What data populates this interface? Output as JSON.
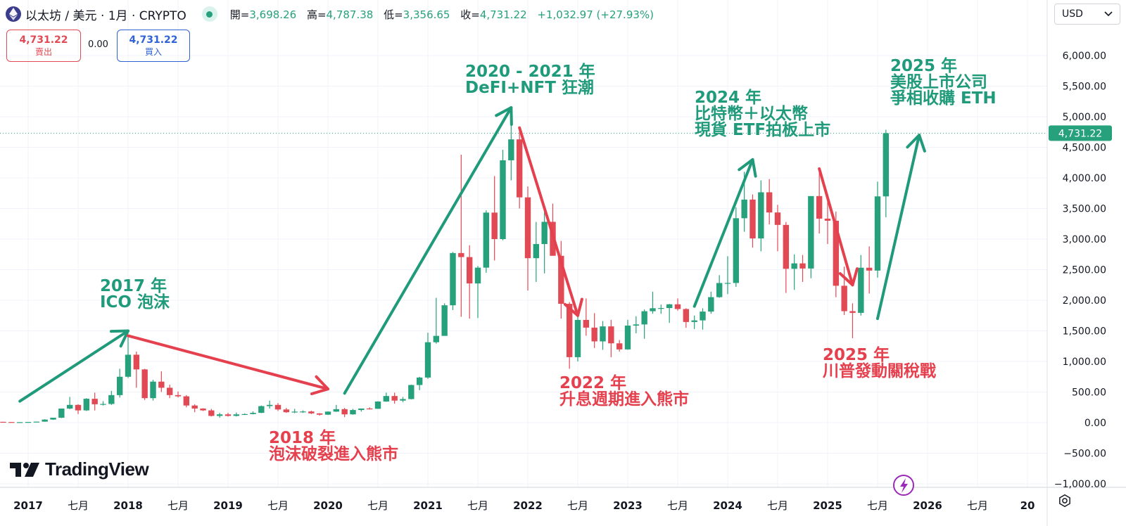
{
  "header": {
    "symbol": "以太坊 / 美元 · 1月 · CRYPTO",
    "open_label": "開=",
    "open": "3,698.26",
    "high_label": "高=",
    "high": "4,787.38",
    "low_label": "低=",
    "low": "3,356.65",
    "close_label": "收=",
    "close": "4,731.22",
    "change": "+1,032.97 (+27.93%)"
  },
  "trade": {
    "sell_price": "4,731.22",
    "sell_label": "賣出",
    "spread": "0.00",
    "buy_price": "4,731.22",
    "buy_label": "買入"
  },
  "currency": {
    "label": "USD",
    "icon": "chevron-down-icon"
  },
  "branding": {
    "logo_text": "TradingView"
  },
  "colors": {
    "up": "#26a17c",
    "down": "#e14a55",
    "price_tag": "#26a17c",
    "annotation_green": "#1f9a7a",
    "annotation_red": "#e5404e",
    "bolt": "#9b2ab8"
  },
  "chart_data": {
    "type": "candlestick",
    "interval": "1M",
    "ylim": [
      -1000,
      6500
    ],
    "y_ticks": [
      6000,
      5500,
      5000,
      4500,
      4000,
      3500,
      3000,
      2500,
      2000,
      1500,
      1000,
      500,
      0,
      -500,
      -1000
    ],
    "y_tick_labels": [
      "6,000.00",
      "5,500.00",
      "5,000.00",
      "4,500.00",
      "4,000.00",
      "3,500.00",
      "3,000.00",
      "2,500.00",
      "2,000.00",
      "1,500.00",
      "1,000.00",
      "500.00",
      "0.00",
      "−500.00",
      "−1,000.00"
    ],
    "x_labels": [
      "2017",
      "七月",
      "2018",
      "七月",
      "2019",
      "七月",
      "2020",
      "七月",
      "2021",
      "七月",
      "2022",
      "七月",
      "2023",
      "七月",
      "2024",
      "七月",
      "2025",
      "七月",
      "2026",
      "七月",
      "20"
    ],
    "last_price": 4731.22,
    "last_price_label": "4,731.22",
    "candles": [
      {
        "date": "2016-10",
        "o": 13,
        "h": 14,
        "l": 10,
        "c": 10
      },
      {
        "date": "2016-11",
        "o": 10,
        "h": 11,
        "l": 8,
        "c": 8
      },
      {
        "date": "2016-12",
        "o": 8,
        "h": 9,
        "l": 7,
        "c": 8
      },
      {
        "date": "2017-01",
        "o": 8,
        "h": 11,
        "l": 8,
        "c": 11
      },
      {
        "date": "2017-02",
        "o": 11,
        "h": 17,
        "l": 10,
        "c": 16
      },
      {
        "date": "2017-03",
        "o": 16,
        "h": 55,
        "l": 15,
        "c": 50
      },
      {
        "date": "2017-04",
        "o": 50,
        "h": 80,
        "l": 45,
        "c": 80
      },
      {
        "date": "2017-05",
        "o": 80,
        "h": 230,
        "l": 75,
        "c": 230
      },
      {
        "date": "2017-06",
        "o": 230,
        "h": 420,
        "l": 220,
        "c": 290
      },
      {
        "date": "2017-07",
        "o": 290,
        "h": 300,
        "l": 140,
        "c": 200
      },
      {
        "date": "2017-08",
        "o": 200,
        "h": 400,
        "l": 190,
        "c": 390
      },
      {
        "date": "2017-09",
        "o": 390,
        "h": 490,
        "l": 200,
        "c": 300
      },
      {
        "date": "2017-10",
        "o": 300,
        "h": 350,
        "l": 280,
        "c": 305
      },
      {
        "date": "2017-11",
        "o": 305,
        "h": 520,
        "l": 290,
        "c": 450
      },
      {
        "date": "2017-12",
        "o": 450,
        "h": 880,
        "l": 410,
        "c": 750
      },
      {
        "date": "2018-01",
        "o": 750,
        "h": 1420,
        "l": 730,
        "c": 1110
      },
      {
        "date": "2018-02",
        "o": 1110,
        "h": 1160,
        "l": 570,
        "c": 870
      },
      {
        "date": "2018-03",
        "o": 870,
        "h": 880,
        "l": 370,
        "c": 400
      },
      {
        "date": "2018-04",
        "o": 400,
        "h": 700,
        "l": 360,
        "c": 670
      },
      {
        "date": "2018-05",
        "o": 670,
        "h": 840,
        "l": 500,
        "c": 570
      },
      {
        "date": "2018-06",
        "o": 570,
        "h": 620,
        "l": 400,
        "c": 450
      },
      {
        "date": "2018-07",
        "o": 450,
        "h": 510,
        "l": 410,
        "c": 430
      },
      {
        "date": "2018-08",
        "o": 430,
        "h": 450,
        "l": 250,
        "c": 280
      },
      {
        "date": "2018-09",
        "o": 280,
        "h": 300,
        "l": 170,
        "c": 230
      },
      {
        "date": "2018-10",
        "o": 230,
        "h": 235,
        "l": 190,
        "c": 200
      },
      {
        "date": "2018-11",
        "o": 200,
        "h": 225,
        "l": 100,
        "c": 110
      },
      {
        "date": "2018-12",
        "o": 110,
        "h": 160,
        "l": 80,
        "c": 135
      },
      {
        "date": "2019-01",
        "o": 135,
        "h": 160,
        "l": 100,
        "c": 110
      },
      {
        "date": "2019-02",
        "o": 110,
        "h": 165,
        "l": 100,
        "c": 135
      },
      {
        "date": "2019-03",
        "o": 135,
        "h": 150,
        "l": 125,
        "c": 140
      },
      {
        "date": "2019-04",
        "o": 140,
        "h": 185,
        "l": 135,
        "c": 160
      },
      {
        "date": "2019-05",
        "o": 160,
        "h": 280,
        "l": 155,
        "c": 270
      },
      {
        "date": "2019-06",
        "o": 270,
        "h": 360,
        "l": 230,
        "c": 290
      },
      {
        "date": "2019-07",
        "o": 290,
        "h": 320,
        "l": 190,
        "c": 215
      },
      {
        "date": "2019-08",
        "o": 215,
        "h": 240,
        "l": 160,
        "c": 170
      },
      {
        "date": "2019-09",
        "o": 170,
        "h": 225,
        "l": 155,
        "c": 180
      },
      {
        "date": "2019-10",
        "o": 180,
        "h": 200,
        "l": 160,
        "c": 182
      },
      {
        "date": "2019-11",
        "o": 182,
        "h": 195,
        "l": 140,
        "c": 151
      },
      {
        "date": "2019-12",
        "o": 151,
        "h": 155,
        "l": 115,
        "c": 130
      },
      {
        "date": "2020-01",
        "o": 130,
        "h": 185,
        "l": 125,
        "c": 180
      },
      {
        "date": "2020-02",
        "o": 180,
        "h": 290,
        "l": 175,
        "c": 220
      },
      {
        "date": "2020-03",
        "o": 220,
        "h": 240,
        "l": 90,
        "c": 135
      },
      {
        "date": "2020-04",
        "o": 135,
        "h": 225,
        "l": 130,
        "c": 206
      },
      {
        "date": "2020-05",
        "o": 206,
        "h": 230,
        "l": 180,
        "c": 231
      },
      {
        "date": "2020-06",
        "o": 231,
        "h": 250,
        "l": 215,
        "c": 226
      },
      {
        "date": "2020-07",
        "o": 226,
        "h": 350,
        "l": 225,
        "c": 345
      },
      {
        "date": "2020-08",
        "o": 345,
        "h": 490,
        "l": 340,
        "c": 435
      },
      {
        "date": "2020-09",
        "o": 435,
        "h": 490,
        "l": 310,
        "c": 360
      },
      {
        "date": "2020-10",
        "o": 360,
        "h": 420,
        "l": 335,
        "c": 385
      },
      {
        "date": "2020-11",
        "o": 385,
        "h": 620,
        "l": 380,
        "c": 615
      },
      {
        "date": "2020-12",
        "o": 615,
        "h": 750,
        "l": 530,
        "c": 737
      },
      {
        "date": "2021-01",
        "o": 737,
        "h": 1470,
        "l": 715,
        "c": 1314
      },
      {
        "date": "2021-02",
        "o": 1314,
        "h": 2040,
        "l": 1290,
        "c": 1418
      },
      {
        "date": "2021-03",
        "o": 1418,
        "h": 1950,
        "l": 1420,
        "c": 1918
      },
      {
        "date": "2021-04",
        "o": 1918,
        "h": 2790,
        "l": 1840,
        "c": 2772
      },
      {
        "date": "2021-05",
        "o": 2772,
        "h": 4380,
        "l": 1730,
        "c": 2706
      },
      {
        "date": "2021-06",
        "o": 2706,
        "h": 2900,
        "l": 1700,
        "c": 2275
      },
      {
        "date": "2021-07",
        "o": 2275,
        "h": 2560,
        "l": 1710,
        "c": 2533
      },
      {
        "date": "2021-08",
        "o": 2533,
        "h": 3470,
        "l": 2450,
        "c": 3433
      },
      {
        "date": "2021-09",
        "o": 3433,
        "h": 4030,
        "l": 2650,
        "c": 3000
      },
      {
        "date": "2021-10",
        "o": 3000,
        "h": 4460,
        "l": 2980,
        "c": 4288
      },
      {
        "date": "2021-11",
        "o": 4288,
        "h": 4870,
        "l": 3960,
        "c": 4630
      },
      {
        "date": "2021-12",
        "o": 4630,
        "h": 4780,
        "l": 3500,
        "c": 3682
      },
      {
        "date": "2022-01",
        "o": 3682,
        "h": 3860,
        "l": 2160,
        "c": 2688
      },
      {
        "date": "2022-02",
        "o": 2688,
        "h": 3280,
        "l": 2300,
        "c": 2919
      },
      {
        "date": "2022-03",
        "o": 2919,
        "h": 3480,
        "l": 2440,
        "c": 3282
      },
      {
        "date": "2022-04",
        "o": 3282,
        "h": 3580,
        "l": 2730,
        "c": 2727
      },
      {
        "date": "2022-05",
        "o": 2727,
        "h": 2970,
        "l": 1700,
        "c": 1942
      },
      {
        "date": "2022-06",
        "o": 1942,
        "h": 1970,
        "l": 880,
        "c": 1070
      },
      {
        "date": "2022-07",
        "o": 1070,
        "h": 1790,
        "l": 1000,
        "c": 1679
      },
      {
        "date": "2022-08",
        "o": 1679,
        "h": 2030,
        "l": 1420,
        "c": 1553
      },
      {
        "date": "2022-09",
        "o": 1553,
        "h": 1790,
        "l": 1220,
        "c": 1328
      },
      {
        "date": "2022-10",
        "o": 1328,
        "h": 1660,
        "l": 1190,
        "c": 1573
      },
      {
        "date": "2022-11",
        "o": 1573,
        "h": 1680,
        "l": 1070,
        "c": 1296
      },
      {
        "date": "2022-12",
        "o": 1296,
        "h": 1350,
        "l": 1160,
        "c": 1197
      },
      {
        "date": "2023-01",
        "o": 1197,
        "h": 1680,
        "l": 1190,
        "c": 1586
      },
      {
        "date": "2023-02",
        "o": 1586,
        "h": 1740,
        "l": 1460,
        "c": 1605
      },
      {
        "date": "2023-03",
        "o": 1605,
        "h": 1850,
        "l": 1370,
        "c": 1821
      },
      {
        "date": "2023-04",
        "o": 1821,
        "h": 2140,
        "l": 1780,
        "c": 1870
      },
      {
        "date": "2023-05",
        "o": 1870,
        "h": 1930,
        "l": 1780,
        "c": 1873
      },
      {
        "date": "2023-06",
        "o": 1873,
        "h": 1940,
        "l": 1630,
        "c": 1934
      },
      {
        "date": "2023-07",
        "o": 1934,
        "h": 2030,
        "l": 1830,
        "c": 1857
      },
      {
        "date": "2023-08",
        "o": 1857,
        "h": 1870,
        "l": 1550,
        "c": 1645
      },
      {
        "date": "2023-09",
        "o": 1645,
        "h": 1750,
        "l": 1530,
        "c": 1671
      },
      {
        "date": "2023-10",
        "o": 1671,
        "h": 1870,
        "l": 1520,
        "c": 1815
      },
      {
        "date": "2023-11",
        "o": 1815,
        "h": 2140,
        "l": 1780,
        "c": 2051
      },
      {
        "date": "2023-12",
        "o": 2051,
        "h": 2410,
        "l": 2040,
        "c": 2282
      },
      {
        "date": "2024-01",
        "o": 2282,
        "h": 2720,
        "l": 2100,
        "c": 2283
      },
      {
        "date": "2024-02",
        "o": 2283,
        "h": 3520,
        "l": 2220,
        "c": 3341
      },
      {
        "date": "2024-03",
        "o": 3341,
        "h": 4100,
        "l": 3120,
        "c": 3646
      },
      {
        "date": "2024-04",
        "o": 3646,
        "h": 3730,
        "l": 2860,
        "c": 3011
      },
      {
        "date": "2024-05",
        "o": 3011,
        "h": 3960,
        "l": 2800,
        "c": 3765
      },
      {
        "date": "2024-06",
        "o": 3765,
        "h": 3980,
        "l": 3240,
        "c": 3435
      },
      {
        "date": "2024-07",
        "o": 3435,
        "h": 3560,
        "l": 2800,
        "c": 3232
      },
      {
        "date": "2024-08",
        "o": 3232,
        "h": 3280,
        "l": 2120,
        "c": 2514
      },
      {
        "date": "2024-09",
        "o": 2514,
        "h": 2750,
        "l": 2170,
        "c": 2603
      },
      {
        "date": "2024-10",
        "o": 2603,
        "h": 2740,
        "l": 2300,
        "c": 2519
      },
      {
        "date": "2024-11",
        "o": 2519,
        "h": 3700,
        "l": 2360,
        "c": 3703
      },
      {
        "date": "2024-12",
        "o": 3703,
        "h": 4110,
        "l": 3090,
        "c": 3334
      },
      {
        "date": "2025-01",
        "o": 3334,
        "h": 3740,
        "l": 2920,
        "c": 3300
      },
      {
        "date": "2025-02",
        "o": 3300,
        "h": 3450,
        "l": 2050,
        "c": 2237
      },
      {
        "date": "2025-03",
        "o": 2237,
        "h": 2550,
        "l": 1760,
        "c": 1822
      },
      {
        "date": "2025-04",
        "o": 1822,
        "h": 1950,
        "l": 1380,
        "c": 1794
      },
      {
        "date": "2025-05",
        "o": 1794,
        "h": 2740,
        "l": 1750,
        "c": 2532
      },
      {
        "date": "2025-06",
        "o": 2532,
        "h": 2880,
        "l": 2110,
        "c": 2485
      },
      {
        "date": "2025-07",
        "o": 2485,
        "h": 3940,
        "l": 2370,
        "c": 3698
      },
      {
        "date": "2025-08",
        "o": 3698,
        "h": 4787,
        "l": 3357,
        "c": 4731
      }
    ],
    "annotations": [
      {
        "text": [
          "2017 年",
          "ICO 泡沫"
        ],
        "color": "green"
      },
      {
        "text": [
          "2018 年",
          "泡沫破裂進入熊市"
        ],
        "color": "red"
      },
      {
        "text": [
          "2020 - 2021 年",
          "DeFI+NFT 狂潮"
        ],
        "color": "green"
      },
      {
        "text": [
          "2022 年",
          "升息週期進入熊市"
        ],
        "color": "red"
      },
      {
        "text": [
          "2024 年",
          "比特幣＋以太幣",
          "現貨 ETF拍板上市"
        ],
        "color": "green"
      },
      {
        "text": [
          "2025 年",
          "川普發動關稅戰"
        ],
        "color": "red"
      },
      {
        "text": [
          "2025 年",
          "美股上市公司",
          "爭相收購 ETH"
        ],
        "color": "green"
      }
    ]
  }
}
